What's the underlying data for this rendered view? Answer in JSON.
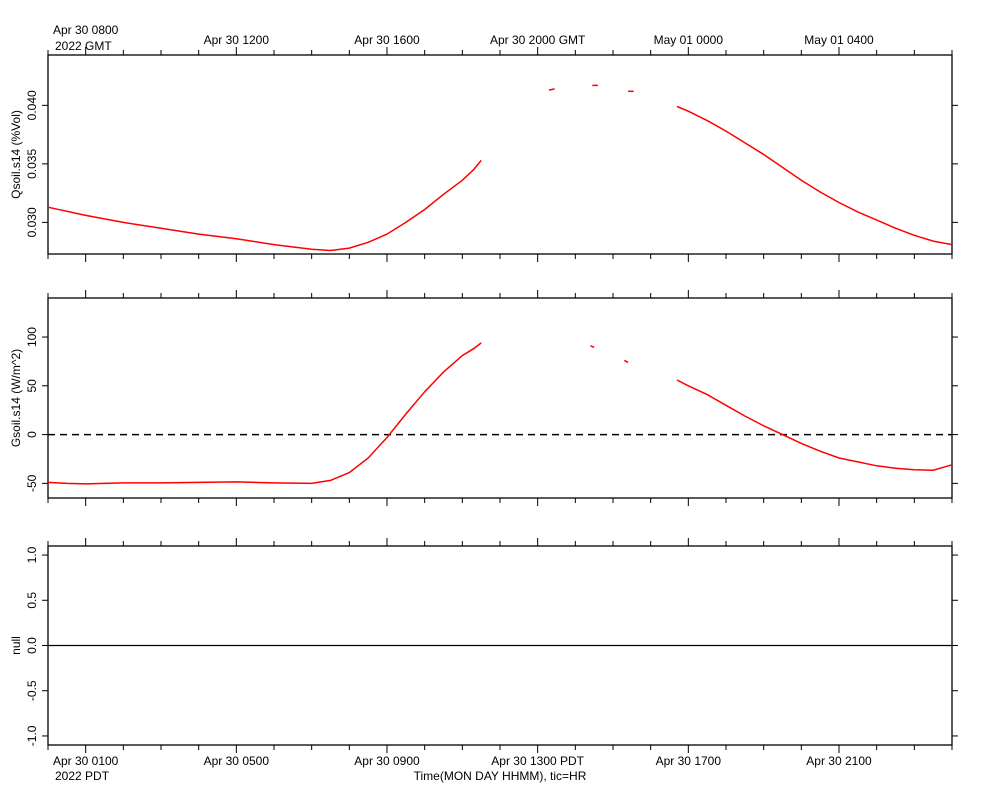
{
  "chart_data": {
    "type": "line",
    "top_axis": {
      "labels": [
        "Apr 30 0800",
        "Apr 30 1200",
        "Apr 30 1600",
        "Apr 30 2000 GMT",
        "May 01 0000",
        "May 01 0400"
      ],
      "year": "2022 GMT"
    },
    "bottom_axis": {
      "labels": [
        "Apr 30 0100",
        "Apr 30 0500",
        "Apr 30 0900",
        "Apr 30 1300 PDT",
        "Apr 30 1700",
        "Apr 30 2100"
      ],
      "year": "2022 PDT",
      "title": "Time(MON DAY HHMM), tic=HR"
    },
    "line_color": "#ff0000",
    "x_range_hours_pdt": [
      0,
      24
    ],
    "panels": [
      {
        "ylabel": "Qsoil.s14 (%Vol)",
        "ylim": [
          0.0273,
          0.0443
        ],
        "yticks": [
          0.03,
          0.035,
          0.04
        ],
        "ytick_labels": [
          "0.030",
          "0.035",
          "0.040"
        ],
        "series": [
          {
            "segments": [
              [
                [
                  0,
                  0.0313
                ],
                [
                  1,
                  0.0306
                ],
                [
                  2,
                  0.03
                ],
                [
                  3,
                  0.0295
                ],
                [
                  4,
                  0.029
                ],
                [
                  5,
                  0.0286
                ],
                [
                  6,
                  0.0281
                ],
                [
                  7,
                  0.0277
                ],
                [
                  7.5,
                  0.0276
                ],
                [
                  8,
                  0.0278
                ],
                [
                  8.5,
                  0.0283
                ],
                [
                  9,
                  0.029
                ],
                [
                  9.5,
                  0.03
                ],
                [
                  10,
                  0.0311
                ],
                [
                  10.5,
                  0.0324
                ],
                [
                  11,
                  0.0336
                ],
                [
                  11.1,
                  0.0339
                ],
                [
                  11.2,
                  0.0342
                ],
                [
                  11.3,
                  0.0345
                ],
                [
                  11.4,
                  0.0349
                ],
                [
                  11.5,
                  0.0353
                ]
              ],
              [
                [
                  13.3,
                  0.0413
                ],
                [
                  13.45,
                  0.0414
                ]
              ],
              [
                [
                  14.45,
                  0.0417
                ],
                [
                  14.6,
                  0.0417
                ]
              ],
              [
                [
                  15.4,
                  0.0412
                ],
                [
                  15.55,
                  0.0412
                ]
              ],
              [
                [
                  16.7,
                  0.0399
                ],
                [
                  17,
                  0.0395
                ],
                [
                  17.5,
                  0.0387
                ],
                [
                  18,
                  0.0378
                ],
                [
                  18.5,
                  0.0368
                ],
                [
                  19,
                  0.0358
                ],
                [
                  19.5,
                  0.0347
                ],
                [
                  20,
                  0.0336
                ],
                [
                  20.5,
                  0.0326
                ],
                [
                  21,
                  0.0317
                ],
                [
                  21.5,
                  0.0309
                ],
                [
                  22,
                  0.0302
                ],
                [
                  22.5,
                  0.0295
                ],
                [
                  23,
                  0.0289
                ],
                [
                  23.5,
                  0.0284
                ],
                [
                  24,
                  0.0281
                ]
              ]
            ]
          }
        ]
      },
      {
        "ylabel": "Gsoil.s14 (W/m^2)",
        "ylim": [
          -65,
          140
        ],
        "yticks": [
          -50,
          0,
          50,
          100
        ],
        "ytick_labels": [
          "-50",
          "0",
          "50",
          "100"
        ],
        "reference_line": 0,
        "series": [
          {
            "segments": [
              [
                [
                  0,
                  -49
                ],
                [
                  0.5,
                  -50
                ],
                [
                  1,
                  -50.5
                ],
                [
                  2,
                  -49.5
                ],
                [
                  3,
                  -49.5
                ],
                [
                  4,
                  -49
                ],
                [
                  5,
                  -48.5
                ],
                [
                  6,
                  -49.5
                ],
                [
                  7,
                  -50
                ],
                [
                  7.5,
                  -47
                ],
                [
                  8,
                  -39
                ],
                [
                  8.5,
                  -24
                ],
                [
                  9,
                  -3
                ],
                [
                  9.5,
                  21
                ],
                [
                  10,
                  44
                ],
                [
                  10.5,
                  64
                ],
                [
                  11,
                  81
                ],
                [
                  11.3,
                  88
                ],
                [
                  11.5,
                  94
                ]
              ],
              [
                [
                  14.4,
                  91
                ],
                [
                  14.5,
                  89.5
                ]
              ],
              [
                [
                  15.3,
                  76
                ],
                [
                  15.4,
                  74
                ]
              ],
              [
                [
                  16.7,
                  56
                ],
                [
                  17,
                  50
                ],
                [
                  17.5,
                  41
                ],
                [
                  18,
                  30
                ],
                [
                  18.5,
                  19
                ],
                [
                  19,
                  9
                ],
                [
                  19.5,
                  0
                ],
                [
                  20,
                  -9
                ],
                [
                  20.5,
                  -17
                ],
                [
                  21,
                  -24
                ],
                [
                  21.5,
                  -28
                ],
                [
                  22,
                  -32
                ],
                [
                  22.5,
                  -34.5
                ],
                [
                  23,
                  -36
                ],
                [
                  23.5,
                  -36.5
                ],
                [
                  24,
                  -31
                ]
              ]
            ]
          }
        ]
      },
      {
        "ylabel": "null",
        "ylim": [
          -1.1,
          1.1
        ],
        "yticks": [
          -1.0,
          -0.5,
          0.0,
          0.5,
          1.0
        ],
        "ytick_labels": [
          "-1.0",
          "-0.5",
          "0.0",
          "0.5",
          "1.0"
        ],
        "constant_line": 0.0
      }
    ]
  }
}
